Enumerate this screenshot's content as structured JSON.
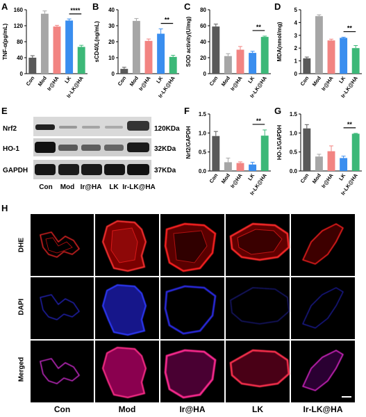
{
  "panels": {
    "A": "A",
    "B": "B",
    "C": "C",
    "D": "D",
    "E": "E",
    "F": "F",
    "G": "G",
    "H": "H"
  },
  "colors": {
    "Con": "#595959",
    "Mod": "#a6a6a6",
    "Ir@HA": "#f28482",
    "LK": "#3a8eef",
    "Ir-LK@HA": "#3cb878"
  },
  "chart_data": [
    {
      "panel": "A",
      "type": "bar",
      "categories": [
        "Con",
        "Mod",
        "Ir@HA",
        "LK",
        "Ir-LK@HA"
      ],
      "values": [
        40,
        150,
        118,
        133,
        67
      ],
      "errors": [
        5,
        7,
        3,
        4,
        4
      ],
      "ylabel": "TNF-α(pg/mL)",
      "ylim": [
        0,
        160
      ],
      "yticks": [
        0,
        40,
        80,
        120,
        160
      ],
      "significance": {
        "from": 3,
        "to": 4,
        "label": "****"
      }
    },
    {
      "panel": "B",
      "type": "bar",
      "categories": [
        "Con",
        "Mod",
        "Ir@HA",
        "LK",
        "Ir-LK@HA"
      ],
      "values": [
        3,
        33,
        20.5,
        25,
        10.5
      ],
      "errors": [
        1,
        1.5,
        1.2,
        3,
        1
      ],
      "ylabel": "sCD40L(ng/mL)",
      "ylim": [
        0,
        40
      ],
      "yticks": [
        0,
        10,
        20,
        30,
        40
      ],
      "significance": {
        "from": 3,
        "to": 4,
        "label": "**"
      }
    },
    {
      "panel": "C",
      "type": "bar",
      "categories": [
        "Con",
        "Mod",
        "Ir@HA",
        "LK",
        "Ir-LK@HA"
      ],
      "values": [
        59,
        22,
        30,
        26,
        46
      ],
      "errors": [
        3,
        3,
        4,
        2,
        1
      ],
      "ylabel": "SOD activity(U/mg)",
      "ylim": [
        0,
        80
      ],
      "yticks": [
        0,
        20,
        40,
        60,
        80
      ],
      "significance": {
        "from": 3,
        "to": 4,
        "label": "**"
      }
    },
    {
      "panel": "D",
      "type": "bar",
      "categories": [
        "Con",
        "Mod",
        "Ir@HA",
        "LK",
        "Ir-LK@HA"
      ],
      "values": [
        1.2,
        4.5,
        2.6,
        2.8,
        2.0
      ],
      "errors": [
        0.1,
        0.1,
        0.1,
        0.05,
        0.2
      ],
      "ylabel": "MDA(nmol/mg)",
      "ylim": [
        0,
        5
      ],
      "yticks": [
        0,
        1,
        2,
        3,
        4,
        5
      ],
      "significance": {
        "from": 3,
        "to": 4,
        "label": "**"
      }
    },
    {
      "panel": "F",
      "type": "bar",
      "categories": [
        "Con",
        "Mod",
        "Ir@HA",
        "LK",
        "Ir-LK@HA"
      ],
      "values": [
        0.92,
        0.23,
        0.21,
        0.17,
        0.93
      ],
      "errors": [
        0.12,
        0.11,
        0.03,
        0.06,
        0.15
      ],
      "ylabel": "Nrf2/GAPDH",
      "ylim": [
        0,
        1.5
      ],
      "yticks": [
        0.0,
        0.5,
        1.0,
        1.5
      ],
      "significance": {
        "from": 3,
        "to": 4,
        "label": "**"
      }
    },
    {
      "panel": "G",
      "type": "bar",
      "categories": [
        "Con",
        "Mod",
        "Ir@HA",
        "LK",
        "Ir-LK@HA"
      ],
      "values": [
        1.12,
        0.38,
        0.52,
        0.34,
        0.98
      ],
      "errors": [
        0.1,
        0.06,
        0.14,
        0.05,
        0.01
      ],
      "ylabel": "HO-1/GAPDH",
      "ylim": [
        0,
        1.5
      ],
      "yticks": [
        0.0,
        0.5,
        1.0,
        1.5
      ],
      "significance": {
        "from": 3,
        "to": 4,
        "label": "**"
      }
    }
  ],
  "western_blot": {
    "rows": [
      "Nrf2",
      "HO-1",
      "GAPDH"
    ],
    "kda": [
      "120KDa",
      "32KDa",
      "37KDa"
    ],
    "lanes": [
      "Con",
      "Mod",
      "Ir@HA",
      "LK",
      "Ir-LK@HA"
    ]
  },
  "microscopy": {
    "rows": [
      "DHE",
      "DAPI",
      "Merged"
    ],
    "columns": [
      "Con",
      "Mod",
      "Ir@HA",
      "LK",
      "Ir-LK@HA"
    ]
  }
}
